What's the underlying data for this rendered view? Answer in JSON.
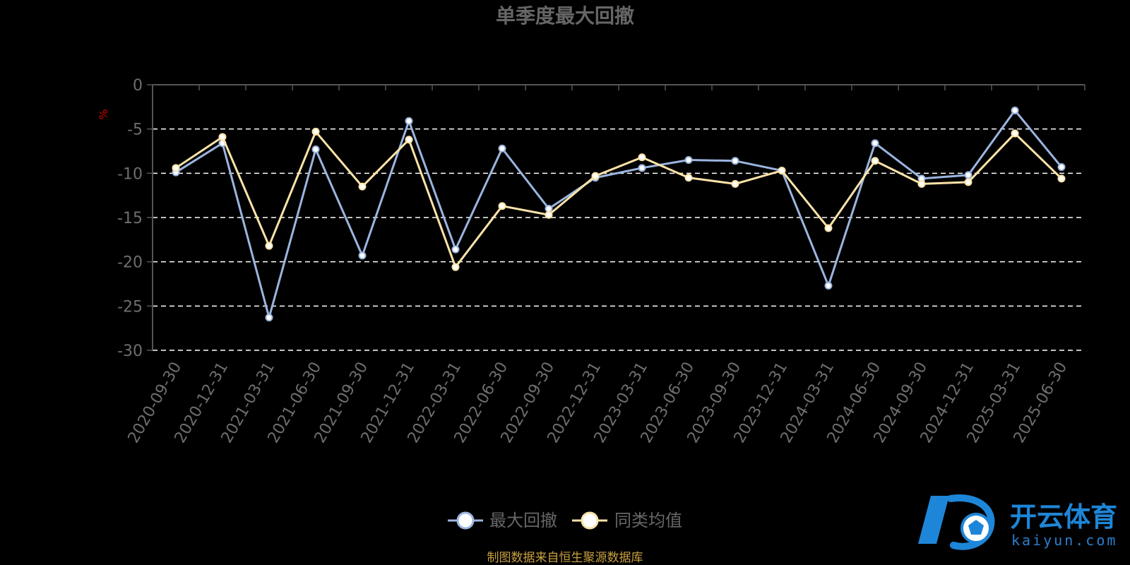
{
  "chart_data": {
    "type": "line",
    "title": "单季度最大回撤",
    "ylabel": "%",
    "ylim": [
      -30,
      0
    ],
    "yticks": [
      0,
      -5,
      -10,
      -15,
      -20,
      -25,
      -30
    ],
    "grid": true,
    "legend_position": "bottom-center",
    "categories": [
      "2020-09-30",
      "2020-12-31",
      "2021-03-31",
      "2021-06-30",
      "2021-09-30",
      "2021-12-31",
      "2022-03-31",
      "2022-06-30",
      "2022-09-30",
      "2022-12-31",
      "2023-03-31",
      "2023-06-30",
      "2023-09-30",
      "2023-12-31",
      "2024-03-31",
      "2024-06-30",
      "2024-09-30",
      "2024-12-31",
      "2025-03-31",
      "2025-06-30"
    ],
    "series": [
      {
        "name": "最大回撤",
        "color": "#9bb5e0",
        "values": [
          -9.9,
          -6.6,
          -26.3,
          -7.3,
          -19.3,
          -4.1,
          -18.6,
          -7.2,
          -14.0,
          -10.5,
          -9.4,
          -8.5,
          -8.6,
          -9.7,
          -22.7,
          -6.6,
          -10.6,
          -10.2,
          -2.9,
          -9.3
        ]
      },
      {
        "name": "同类均值",
        "color": "#fbe3a8",
        "values": [
          -9.4,
          -5.9,
          -18.2,
          -5.3,
          -11.5,
          -6.2,
          -20.6,
          -13.7,
          -14.7,
          -10.3,
          -8.2,
          -10.5,
          -11.2,
          -9.7,
          -16.2,
          -8.6,
          -11.2,
          -11.0,
          -5.5,
          -10.6
        ]
      }
    ]
  },
  "footer": {
    "source": "制图数据来自恒生聚源数据库"
  },
  "watermark": {
    "brand_cn": "开云体育",
    "brand_en": "kaiyun.com",
    "color": "#1e86d8"
  }
}
